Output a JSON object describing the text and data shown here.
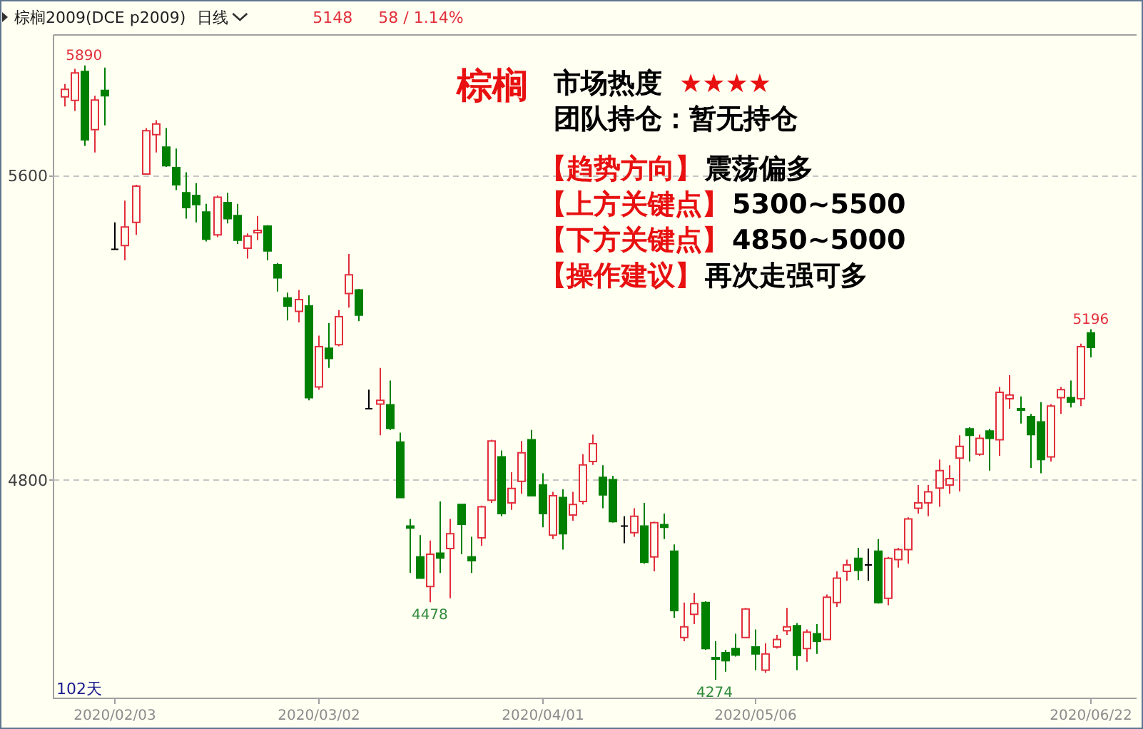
{
  "chart_data": {
    "type": "candlestick",
    "title": "棕榈2009(DCE p2009)",
    "subtitle": "日线",
    "categories": [
      null,
      null,
      null,
      null,
      null,
      "2020/02/03",
      null,
      null,
      null,
      null,
      null,
      null,
      null,
      null,
      null,
      null,
      null,
      null,
      null,
      null,
      null,
      null,
      null,
      null,
      null,
      "2020/03/02",
      null,
      null,
      null,
      null,
      null,
      null,
      null,
      null,
      null,
      null,
      null,
      null,
      null,
      null,
      null,
      null,
      null,
      null,
      null,
      null,
      null,
      "2020/04/01",
      null,
      null,
      null,
      null,
      null,
      null,
      null,
      null,
      null,
      null,
      null,
      null,
      null,
      null,
      null,
      null,
      null,
      null,
      null,
      null,
      "2020/05/06",
      null,
      null,
      null,
      null,
      null,
      null,
      null,
      null,
      null,
      null,
      null,
      null,
      null,
      null,
      null,
      null,
      null,
      null,
      null,
      null,
      null,
      null,
      null,
      null,
      null,
      null,
      null,
      null,
      null,
      null,
      null,
      null,
      "2020/06/22"
    ],
    "ohlc": [
      [
        5807,
        5841,
        5782,
        5827
      ],
      [
        5798,
        5881,
        5770,
        5870
      ],
      [
        5874,
        5890,
        5678,
        5694
      ],
      [
        5721,
        5810,
        5661,
        5799
      ],
      [
        5824,
        5884,
        5732,
        5810
      ],
      [
        5406,
        5477,
        5406,
        5406
      ],
      [
        5416,
        5534,
        5377,
        5465
      ],
      [
        5477,
        5576,
        5444,
        5572
      ],
      [
        5604,
        5725,
        5604,
        5718
      ],
      [
        5708,
        5746,
        5661,
        5736
      ],
      [
        5675,
        5725,
        5623,
        5626
      ],
      [
        5621,
        5671,
        5562,
        5576
      ],
      [
        5555,
        5609,
        5487,
        5516
      ],
      [
        5548,
        5580,
        5477,
        5524
      ],
      [
        5504,
        5526,
        5427,
        5433
      ],
      [
        5444,
        5548,
        5438,
        5543
      ],
      [
        5529,
        5555,
        5474,
        5487
      ],
      [
        5495,
        5526,
        5420,
        5430
      ],
      [
        5409,
        5448,
        5382,
        5441
      ],
      [
        5450,
        5494,
        5430,
        5456
      ],
      [
        5467,
        5470,
        5377,
        5402
      ],
      [
        5366,
        5370,
        5295,
        5331
      ],
      [
        5278,
        5292,
        5219,
        5257
      ],
      [
        5243,
        5299,
        5214,
        5274
      ],
      [
        5257,
        5285,
        5009,
        5016
      ],
      [
        5044,
        5179,
        5037,
        5150
      ],
      [
        5146,
        5212,
        5094,
        5119
      ],
      [
        5155,
        5246,
        5151,
        5229
      ],
      [
        5290,
        5394,
        5253,
        5339
      ],
      [
        5299,
        5302,
        5217,
        5233
      ],
      [
        4987,
        5037,
        4987,
        4987
      ],
      [
        4999,
        5094,
        4917,
        5009
      ],
      [
        4997,
        5061,
        4931,
        4935
      ],
      [
        4899,
        4924,
        4753,
        4753
      ],
      [
        4678,
        4697,
        4555,
        4673
      ],
      [
        4597,
        4654,
        4541,
        4541
      ],
      [
        4519,
        4640,
        4478,
        4604
      ],
      [
        4607,
        4743,
        4555,
        4594
      ],
      [
        4619,
        4697,
        4488,
        4658
      ],
      [
        4735,
        4735,
        4604,
        4683
      ],
      [
        4597,
        4650,
        4555,
        4587
      ],
      [
        4647,
        4732,
        4626,
        4729
      ],
      [
        4746,
        4905,
        4739,
        4902
      ],
      [
        4860,
        4877,
        4704,
        4711
      ],
      [
        4739,
        4820,
        4721,
        4777
      ],
      [
        4796,
        4902,
        4763,
        4871
      ],
      [
        4905,
        4931,
        4758,
        4758
      ],
      [
        4786,
        4817,
        4675,
        4711
      ],
      [
        4654,
        4768,
        4644,
        4758
      ],
      [
        4753,
        4775,
        4616,
        4658
      ],
      [
        4707,
        4768,
        4692,
        4735
      ],
      [
        4743,
        4867,
        4735,
        4839
      ],
      [
        4848,
        4919,
        4839,
        4895
      ],
      [
        4806,
        4838,
        4725,
        4760
      ],
      [
        4800,
        4810,
        4687,
        4690
      ],
      [
        4678,
        4704,
        4633,
        4678
      ],
      [
        4661,
        4725,
        4650,
        4704
      ],
      [
        4678,
        4739,
        4579,
        4583
      ],
      [
        4597,
        4690,
        4559,
        4687
      ],
      [
        4682,
        4711,
        4644,
        4675
      ],
      [
        4612,
        4630,
        4437,
        4456
      ],
      [
        4385,
        4477,
        4375,
        4413
      ],
      [
        4446,
        4502,
        4420,
        4474
      ],
      [
        4477,
        4480,
        4352,
        4356
      ],
      [
        4332,
        4375,
        4274,
        4328
      ],
      [
        4345,
        4352,
        4295,
        4324
      ],
      [
        4356,
        4395,
        4335,
        4339
      ],
      [
        4385,
        4463,
        4385,
        4460
      ],
      [
        4360,
        4406,
        4299,
        4342
      ],
      [
        4299,
        4370,
        4292,
        4342
      ],
      [
        4360,
        4392,
        4356,
        4380
      ],
      [
        4403,
        4463,
        4392,
        4413
      ],
      [
        4416,
        4423,
        4299,
        4338
      ],
      [
        4356,
        4406,
        4321,
        4399
      ],
      [
        4395,
        4420,
        4342,
        4375
      ],
      [
        4380,
        4498,
        4378,
        4491
      ],
      [
        4477,
        4559,
        4465,
        4541
      ],
      [
        4559,
        4590,
        4534,
        4576
      ],
      [
        4593,
        4621,
        4536,
        4562
      ],
      [
        4576,
        4619,
        4534,
        4576
      ],
      [
        4612,
        4644,
        4474,
        4477
      ],
      [
        4488,
        4597,
        4470,
        4593
      ],
      [
        4590,
        4621,
        4569,
        4616
      ],
      [
        4616,
        4701,
        4579,
        4697
      ],
      [
        4725,
        4786,
        4711,
        4739
      ],
      [
        4739,
        4786,
        4704,
        4768
      ],
      [
        4778,
        4853,
        4729,
        4824
      ],
      [
        4786,
        4838,
        4763,
        4803
      ],
      [
        4857,
        4917,
        4769,
        4888
      ],
      [
        4934,
        4938,
        4848,
        4917
      ],
      [
        4867,
        4919,
        4863,
        4909
      ],
      [
        4928,
        4934,
        4824,
        4909
      ],
      [
        4905,
        5044,
        4863,
        5030
      ],
      [
        5013,
        5075,
        4987,
        5023
      ],
      [
        4987,
        5019,
        4948,
        4983
      ],
      [
        4966,
        4973,
        4831,
        4919
      ],
      [
        4952,
        5004,
        4817,
        4853
      ],
      [
        4860,
        4999,
        4848,
        4994
      ],
      [
        5016,
        5044,
        4973,
        5037
      ],
      [
        5016,
        5061,
        4990,
        5004
      ],
      [
        5013,
        5158,
        4994,
        5150
      ],
      [
        5186,
        5196,
        5122,
        5148
      ]
    ],
    "colors": [
      "#e2303c",
      "#e2303c",
      "#008000",
      "#e2303c",
      "#008000",
      "#000000",
      "#e2303c",
      "#e2303c",
      "#e2303c",
      "#e2303c",
      "#008000",
      "#008000",
      "#008000",
      "#008000",
      "#008000",
      "#e2303c",
      "#008000",
      "#008000",
      "#e2303c",
      "#e2303c",
      "#008000",
      "#008000",
      "#008000",
      "#e2303c",
      "#008000",
      "#e2303c",
      "#008000",
      "#e2303c",
      "#e2303c",
      "#008000",
      "#000000",
      "#e2303c",
      "#008000",
      "#008000",
      "#008000",
      "#008000",
      "#e2303c",
      "#008000",
      "#e2303c",
      "#008000",
      "#008000",
      "#e2303c",
      "#e2303c",
      "#008000",
      "#e2303c",
      "#e2303c",
      "#008000",
      "#008000",
      "#e2303c",
      "#008000",
      "#e2303c",
      "#e2303c",
      "#e2303c",
      "#008000",
      "#008000",
      "#000000",
      "#e2303c",
      "#008000",
      "#e2303c",
      "#008000",
      "#008000",
      "#e2303c",
      "#e2303c",
      "#008000",
      "#008000",
      "#008000",
      "#008000",
      "#e2303c",
      "#008000",
      "#e2303c",
      "#e2303c",
      "#e2303c",
      "#008000",
      "#e2303c",
      "#008000",
      "#e2303c",
      "#e2303c",
      "#e2303c",
      "#008000",
      "#000000",
      "#008000",
      "#e2303c",
      "#e2303c",
      "#e2303c",
      "#e2303c",
      "#e2303c",
      "#e2303c",
      "#e2303c",
      "#e2303c",
      "#008000",
      "#e2303c",
      "#008000",
      "#e2303c",
      "#e2303c",
      "#008000",
      "#008000",
      "#008000",
      "#e2303c",
      "#e2303c",
      "#008000",
      "#e2303c",
      "#008000"
    ],
    "ylim": [
      4225,
      5970
    ],
    "yticks": [
      5600,
      4800
    ],
    "grid": "y",
    "annotations": [
      {
        "text": "5890",
        "y": 5890
      },
      {
        "text": "4478",
        "y": 4478
      },
      {
        "text": "4274",
        "y": 4274
      },
      {
        "text": "5196",
        "y": 5196
      },
      "5148",
      "58 / 1.14%",
      "102天",
      "棕榈",
      "市场热度",
      "★★★★",
      "团队持仓：暂无持仓",
      "【趋势方向】",
      "震荡偏多",
      "【上方关键点】",
      "5300~5500",
      "【下方关键点】",
      "4850~5000",
      "【操作建议】",
      "再次走强可多"
    ]
  }
}
